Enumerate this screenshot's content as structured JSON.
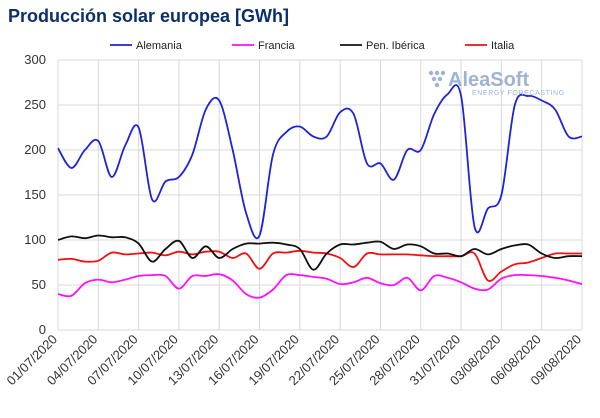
{
  "chart_data": {
    "type": "line",
    "title": "Producción solar europea [GWh]",
    "xlabel": "",
    "ylabel": "",
    "ylim": [
      0,
      300
    ],
    "yticks": [
      0,
      50,
      100,
      150,
      200,
      250,
      300
    ],
    "grid": true,
    "legend_position": "top",
    "x_tick_labels": [
      "01/07/2020",
      "04/07/2020",
      "07/07/2020",
      "10/07/2020",
      "13/07/2020",
      "16/07/2020",
      "19/07/2020",
      "22/07/2020",
      "25/07/2020",
      "28/07/2020",
      "31/07/2020",
      "03/08/2020",
      "06/08/2020",
      "09/08/2020"
    ],
    "x": [
      "01/07/2020",
      "02/07/2020",
      "03/07/2020",
      "04/07/2020",
      "05/07/2020",
      "06/07/2020",
      "07/07/2020",
      "08/07/2020",
      "09/07/2020",
      "10/07/2020",
      "11/07/2020",
      "12/07/2020",
      "13/07/2020",
      "14/07/2020",
      "15/07/2020",
      "16/07/2020",
      "17/07/2020",
      "18/07/2020",
      "19/07/2020",
      "20/07/2020",
      "21/07/2020",
      "22/07/2020",
      "23/07/2020",
      "24/07/2020",
      "25/07/2020",
      "26/07/2020",
      "27/07/2020",
      "28/07/2020",
      "29/07/2020",
      "30/07/2020",
      "31/07/2020",
      "01/08/2020",
      "02/08/2020",
      "03/08/2020",
      "04/08/2020",
      "05/08/2020",
      "06/08/2020",
      "07/08/2020",
      "08/08/2020",
      "09/08/2020"
    ],
    "series": [
      {
        "name": "Alemania",
        "color": "#1f23d6",
        "values": [
          202,
          180,
          200,
          210,
          170,
          205,
          225,
          145,
          165,
          170,
          195,
          245,
          255,
          200,
          130,
          105,
          195,
          220,
          226,
          215,
          215,
          242,
          240,
          185,
          185,
          167,
          200,
          200,
          240,
          262,
          260,
          115,
          135,
          150,
          250,
          260,
          255,
          245,
          215,
          215
        ]
      },
      {
        "name": "Francia",
        "color": "#ff10ff",
        "values": [
          40,
          38,
          52,
          56,
          53,
          56,
          60,
          61,
          60,
          46,
          60,
          60,
          62,
          55,
          40,
          36,
          45,
          61,
          61,
          59,
          57,
          51,
          53,
          58,
          52,
          50,
          58,
          44,
          60,
          58,
          53,
          46,
          45,
          57,
          61,
          61,
          60,
          58,
          55,
          51
        ]
      },
      {
        "name": "Pen. Ibérica",
        "color": "#111111",
        "values": [
          100,
          104,
          102,
          105,
          103,
          103,
          96,
          76,
          90,
          99,
          80,
          93,
          80,
          90,
          96,
          96,
          97,
          95,
          90,
          67,
          85,
          95,
          95,
          97,
          98,
          90,
          95,
          93,
          85,
          85,
          82,
          90,
          84,
          90,
          94,
          95,
          85,
          80,
          82,
          82
        ]
      },
      {
        "name": "Italia",
        "color": "#ee1111",
        "values": [
          78,
          79,
          76,
          77,
          86,
          84,
          85,
          86,
          83,
          87,
          84,
          87,
          87,
          80,
          85,
          68,
          85,
          86,
          88,
          86,
          85,
          80,
          70,
          85,
          84,
          84,
          84,
          83,
          82,
          82,
          82,
          85,
          55,
          65,
          73,
          75,
          80,
          85,
          85,
          85
        ]
      }
    ]
  },
  "logo": {
    "name": "AleaSoft",
    "tagline": "ENERGY FORECASTING"
  }
}
